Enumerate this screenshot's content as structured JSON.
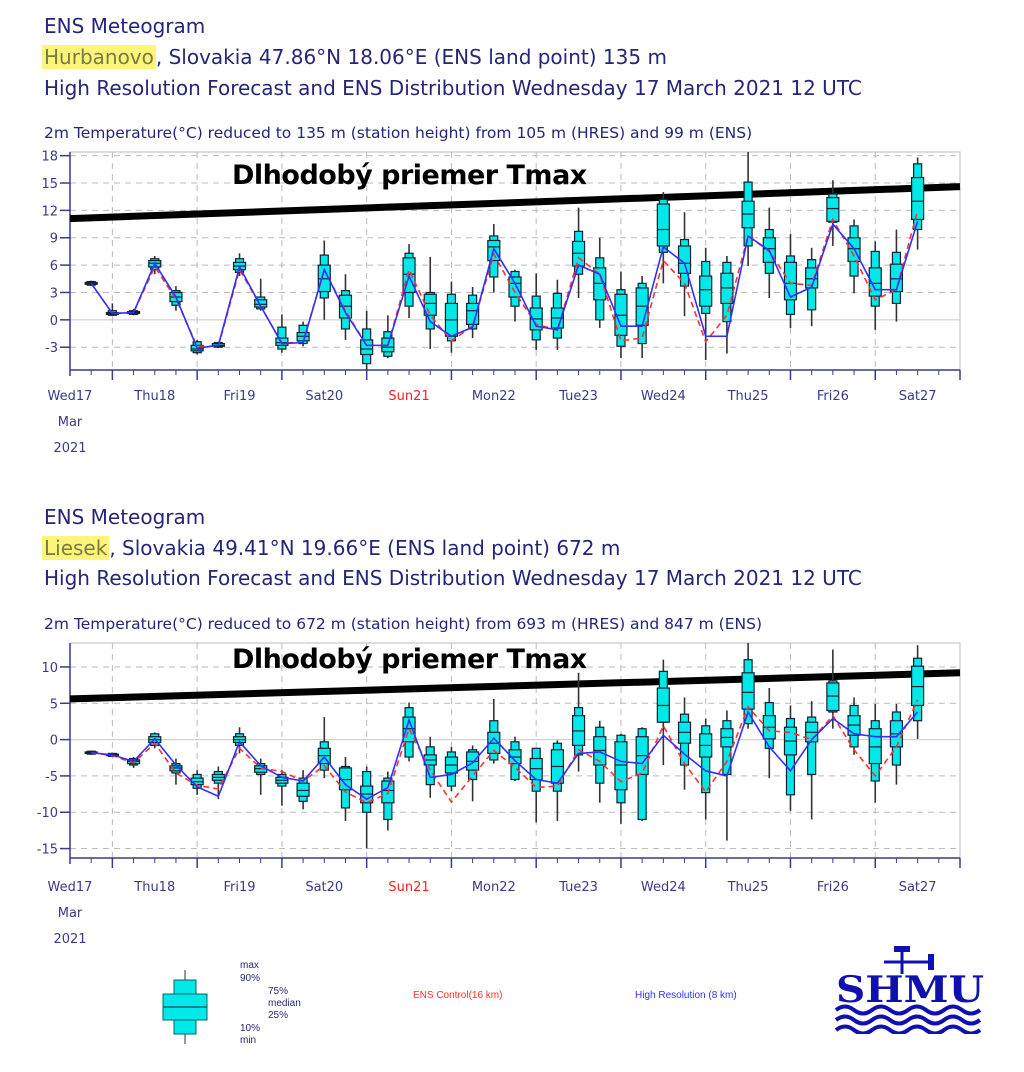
{
  "colors": {
    "box": "#00e8e8",
    "hres": "#3030ff",
    "ctrl": "#ff3030",
    "axis": "#3a3a8a",
    "tmax": "#000000",
    "highlight": "#fdf57a",
    "weekend": "#ff2020"
  },
  "panels": [
    {
      "title": "ENS Meteogram",
      "station": "Hurbanovo",
      "location": ", Slovakia 47.86°N 18.06°E (ENS land point) 135 m",
      "forecast": "High Resolution Forecast and ENS Distribution Wednesday 17 March 2021 12 UTC",
      "subtitle": "2m Temperature(°C) reduced to 135 m (station height) from 105 m (HRES) and 99 m (ENS)",
      "annotation": "Dlhodobý priemer Tmax"
    },
    {
      "title": "ENS Meteogram",
      "station": "Liesek",
      "location": ", Slovakia 49.41°N 19.66°E (ENS land point) 672 m",
      "forecast": "High Resolution Forecast and ENS Distribution Wednesday 17 March 2021 12 UTC",
      "subtitle": "2m Temperature(°C) reduced to 672 m (station height) from 693 m (HRES) and 847 m (ENS)",
      "annotation": "Dlhodobý priemer Tmax"
    }
  ],
  "legend": {
    "box_labels": [
      "max",
      "90%",
      "75%",
      "median",
      "25%",
      "10%",
      "min"
    ],
    "ens_control": "ENS Control(16 km)",
    "high_resolution": "High Resolution (8 km)",
    "logo": "SHMU"
  },
  "chart_data": [
    {
      "type": "boxplot",
      "ylabel": "2m Temperature(°C)",
      "ylim": [
        -5.5,
        18.4
      ],
      "yticks": [
        -3,
        0,
        3,
        6,
        9,
        12,
        15,
        18
      ],
      "x_unit": "hours since Wed 17 Mar 2021 12 UTC",
      "xlim": [
        0,
        252
      ],
      "x_step_hours": 6,
      "day_labels": [
        "Wed17",
        "Thu18",
        "Fri19",
        "Sat20",
        "Sun21",
        "Mon22",
        "Tue23",
        "Wed24",
        "Thu25",
        "Fri26",
        "Sat27"
      ],
      "weekend_index": 4,
      "first_label_extra": [
        "Mar",
        "2021"
      ],
      "stat_fields": [
        "min",
        "p10",
        "p25",
        "median",
        "p75",
        "p90",
        "max",
        "hres",
        "ens_control"
      ],
      "tmax_line": [
        11.1,
        14.6
      ],
      "values": [
        [
          3.7,
          3.8,
          3.9,
          4,
          4.1,
          4.2,
          4.3,
          4,
          4
        ],
        [
          0.4,
          0.5,
          0.6,
          0.7,
          0.8,
          1.0,
          1.8,
          0.7,
          0.7
        ],
        [
          0.5,
          0.6,
          0.7,
          0.8,
          0.9,
          1.0,
          1.2,
          0.8,
          0.8
        ],
        [
          5,
          5.5,
          5.8,
          6.2,
          6.5,
          6.7,
          7,
          6.2,
          5.8
        ],
        [
          1,
          1.6,
          2,
          2.5,
          3,
          3.2,
          3.7,
          2.5,
          2.3
        ],
        [
          -3.8,
          -3.6,
          -3.4,
          -3.2,
          -2.8,
          -2.4,
          -2.2,
          -3.1,
          -2.9
        ],
        [
          -3.1,
          -3,
          -2.9,
          -2.8,
          -2.6,
          -2.5,
          -2.4,
          -2.8,
          -2.9
        ],
        [
          4.8,
          5.2,
          5.5,
          5.9,
          6.3,
          6.7,
          7.3,
          5.8,
          5.5
        ],
        [
          1,
          1.2,
          1.4,
          1.7,
          2.2,
          2.5,
          4.5,
          1.5,
          1.5
        ],
        [
          -3.6,
          -3.2,
          -2.8,
          -2.5,
          -2,
          -0.8,
          0.6,
          -2.6,
          -2.6
        ],
        [
          -2.9,
          -2.6,
          -2.3,
          -1.8,
          -1.4,
          -0.6,
          -0.2,
          -2.5,
          -2.4
        ],
        [
          0,
          2.4,
          3.1,
          4.5,
          6,
          7.1,
          8.7,
          5.5,
          5.5
        ],
        [
          -2.2,
          -1,
          0.2,
          1.5,
          2.7,
          3.2,
          5,
          0.8,
          1
        ],
        [
          -5.5,
          -4.8,
          -3.8,
          -3.2,
          -2.2,
          -1,
          1,
          -2.8,
          -2.8
        ],
        [
          -4.2,
          -4,
          -3.5,
          -3,
          -2,
          -1.3,
          0.5,
          -2.8,
          -2.8
        ],
        [
          0.2,
          1.5,
          3,
          5,
          6.8,
          7.3,
          8.3,
          4.8,
          5.5
        ],
        [
          -3.2,
          -1,
          0.5,
          1.8,
          2.8,
          3,
          6.9,
          -0.2,
          0.5
        ],
        [
          -3.6,
          -2.3,
          -1.8,
          0,
          1.8,
          2.8,
          4.2,
          -1.8,
          -2.3
        ],
        [
          -2,
          -1,
          -0.5,
          1,
          1.8,
          2.7,
          3.6,
          -0.8,
          -0.7
        ],
        [
          3,
          4.7,
          6.5,
          8,
          8.7,
          9.2,
          10.5,
          7.8,
          7.2
        ],
        [
          -0.2,
          1.5,
          2.5,
          4,
          4.7,
          5.3,
          5.5,
          4,
          3
        ],
        [
          -3.3,
          -2.2,
          -1.1,
          0.1,
          1.3,
          2.6,
          5.1,
          -0.7,
          -0.5
        ],
        [
          -3.3,
          -2,
          -0.9,
          0.2,
          1.3,
          2.9,
          4.4,
          -1.1,
          -1.1
        ],
        [
          2.4,
          5,
          5.9,
          7.3,
          8.6,
          9.7,
          12.3,
          6,
          6.8
        ],
        [
          -0.9,
          0,
          2.2,
          4,
          5.7,
          6.8,
          9,
          5,
          5
        ],
        [
          -4.2,
          -2.9,
          -1.7,
          0.5,
          2.8,
          3.3,
          5.3,
          -0.7,
          -2.3
        ],
        [
          -4.2,
          -2.6,
          -0.6,
          1.5,
          3.5,
          4,
          4.8,
          -0.7,
          -2
        ],
        [
          4,
          7.4,
          8.1,
          9.9,
          12.7,
          13.2,
          14,
          8,
          6.5
        ],
        [
          0.4,
          3.7,
          5.1,
          6.2,
          8.1,
          8.8,
          11.8,
          6.2,
          4
        ],
        [
          -4.4,
          0.7,
          1.5,
          3.3,
          4.8,
          6.4,
          7.9,
          -1.8,
          -2.4
        ],
        [
          -3.7,
          -0.2,
          1.8,
          3.5,
          5.1,
          6.3,
          7,
          -1.8,
          0.5
        ],
        [
          5.9,
          8.1,
          10.1,
          11.6,
          13,
          15.1,
          18.4,
          9.2,
          9.2
        ],
        [
          2.4,
          5.1,
          6.3,
          7.8,
          9,
          9.9,
          12.3,
          7.6,
          7.5
        ],
        [
          -0.9,
          0.6,
          2.2,
          4,
          6.3,
          7,
          9.4,
          2.5,
          4
        ],
        [
          -0.7,
          1.1,
          3.5,
          4.5,
          5.7,
          6.6,
          7.9,
          3.6,
          3.8
        ],
        [
          8.1,
          10.7,
          10.8,
          12.2,
          13.4,
          13.8,
          15.3,
          10.5,
          11
        ],
        [
          2.9,
          4.8,
          6.4,
          7.8,
          9,
          10.3,
          11,
          7.8,
          7
        ],
        [
          -1.1,
          1.5,
          2.6,
          4,
          5.7,
          7.5,
          8.6,
          3.3,
          2.2
        ],
        [
          -0.2,
          1.8,
          3.1,
          4.5,
          6.1,
          7.4,
          9.9,
          3.3,
          3.3
        ],
        [
          7.7,
          9.9,
          11,
          13,
          15.6,
          17.1,
          17.8,
          10.8,
          12
        ]
      ]
    },
    {
      "type": "boxplot",
      "ylabel": "2m Temperature(°C)",
      "ylim": [
        -16.3,
        13.3
      ],
      "yticks": [
        -15,
        -10,
        -5,
        0,
        5,
        10
      ],
      "x_unit": "hours since Wed 17 Mar 2021 12 UTC",
      "xlim": [
        0,
        252
      ],
      "x_step_hours": 6,
      "day_labels": [
        "Wed17",
        "Thu18",
        "Fri19",
        "Sat20",
        "Sun21",
        "Mon22",
        "Tue23",
        "Wed24",
        "Thu25",
        "Fri26",
        "Sat27"
      ],
      "weekend_index": 4,
      "first_label_extra": [
        "Mar",
        "2021"
      ],
      "stat_fields": [
        "min",
        "p10",
        "p25",
        "median",
        "p75",
        "p90",
        "max",
        "hres",
        "ens_control"
      ],
      "tmax_line": [
        5.6,
        9.2
      ],
      "values": [
        [
          -2.1,
          -2,
          -1.9,
          -1.8,
          -1.7,
          -1.6,
          -1.5,
          -1.8,
          -1.8
        ],
        [
          -2.4,
          -2.3,
          -2.2,
          -2.1,
          -2.0,
          -1.9,
          -1.8,
          -2.1,
          -2.2
        ],
        [
          -3.9,
          -3.5,
          -3.3,
          -3.0,
          -2.8,
          -2.6,
          -2.4,
          -3,
          -3.2
        ],
        [
          -1.2,
          -0.8,
          -0.4,
          0,
          0.4,
          0.8,
          1.0,
          0.1,
          -0.5
        ],
        [
          -6.2,
          -4.6,
          -4.3,
          -3.9,
          -3.6,
          -3.3,
          -2.6,
          -3.5,
          -4.6
        ],
        [
          -7.6,
          -6.7,
          -6.2,
          -5.8,
          -5.3,
          -4.8,
          -4.2,
          -6.5,
          -6.3
        ],
        [
          -8.2,
          -6,
          -5.6,
          -5.2,
          -4.8,
          -4.4,
          -3.7,
          -7.8,
          -6.8
        ],
        [
          -1.9,
          -0.8,
          -0.4,
          0,
          0.4,
          0.8,
          1.7,
          -0.3,
          -1.2
        ],
        [
          -7.6,
          -4.8,
          -4.5,
          -4,
          -3.6,
          -3.3,
          -2.6,
          -3.6,
          -3.9
        ],
        [
          -9.1,
          -6.4,
          -6,
          -5.6,
          -5.2,
          -4.8,
          -4.2,
          -5.2,
          -4.4
        ],
        [
          -9.6,
          -8.5,
          -7.8,
          -7,
          -6,
          -5.3,
          -4.2,
          -5.7,
          -5.7
        ],
        [
          -5.3,
          -4.2,
          -3.3,
          -2.2,
          -1.2,
          -0.3,
          3.1,
          -2.4,
          -3.6
        ],
        [
          -11.2,
          -9.4,
          -6.9,
          -5.5,
          -3.9,
          -3.7,
          -2.4,
          -6.2,
          -7.2
        ],
        [
          -15,
          -10,
          -8.7,
          -7.5,
          -6.4,
          -4.4,
          -3.7,
          -8.2,
          -8.7
        ],
        [
          -12.5,
          -11,
          -8.7,
          -7,
          -5.7,
          -5.3,
          -4.4,
          -6.6,
          -7.4
        ],
        [
          -3,
          -2.4,
          -0.3,
          1.5,
          3.1,
          4.4,
          5.1,
          2.7,
          1.5
        ],
        [
          -8,
          -6.2,
          -3.5,
          -2.8,
          -2.1,
          -1,
          0.4,
          -5.2,
          -4.2
        ],
        [
          -7.1,
          -6.4,
          -4.6,
          -3.5,
          -2.4,
          -1.7,
          -1,
          -4.8,
          -8.6
        ],
        [
          -8.5,
          -5.5,
          -4.2,
          -3,
          -1.7,
          -1.4,
          -0.8,
          -3.2,
          -5
        ],
        [
          -3.3,
          -2.8,
          -1.9,
          -0.5,
          1,
          2.6,
          5.6,
          0.2,
          -1.5
        ],
        [
          -5.7,
          -5.5,
          -3.3,
          -2.4,
          -1.4,
          -0.3,
          0.4,
          -2.9,
          -3.8
        ],
        [
          -11.4,
          -7.1,
          -5.5,
          -4,
          -2.6,
          -1.2,
          -1.2,
          -5.5,
          -6.6
        ],
        [
          -11.2,
          -7.1,
          -6,
          -3.7,
          -1.4,
          -0.5,
          -0.1,
          -6,
          -6.4
        ],
        [
          -4.4,
          -2.1,
          -0.8,
          1.2,
          3.3,
          4.4,
          9.2,
          -1.9,
          -1.4
        ],
        [
          -8.7,
          -6,
          -3.5,
          -1.5,
          0.4,
          1.7,
          2.6,
          -1.7,
          -3
        ],
        [
          -11.6,
          -8.7,
          -6.9,
          -3.5,
          -0.3,
          0.6,
          0.8,
          -3,
          -5.8
        ],
        [
          -11.2,
          -11,
          -4.8,
          -2.2,
          0.4,
          1.5,
          1.7,
          -3.3,
          -4.6
        ],
        [
          -3.5,
          2.4,
          2.4,
          4.7,
          7.1,
          9.4,
          11,
          0.6,
          1.9
        ],
        [
          -6.9,
          -3.5,
          -0.5,
          1,
          2.4,
          3.5,
          5.8,
          -2,
          -3.3
        ],
        [
          -11,
          -7.3,
          -2.4,
          -0.8,
          0.8,
          1.9,
          2.9,
          -4.3,
          -7.2
        ],
        [
          -13.9,
          -4.8,
          -1,
          0.3,
          1.5,
          2.6,
          4,
          -5,
          -3
        ],
        [
          1.5,
          2.2,
          4.2,
          6.5,
          9.2,
          11,
          13.3,
          3.8,
          4.5
        ],
        [
          -5.3,
          -1.2,
          0.1,
          1.7,
          3.3,
          5.1,
          7.1,
          -1,
          1.2
        ],
        [
          -9.8,
          -7.6,
          -2.1,
          -0.2,
          1.7,
          2.9,
          4.7,
          -4.3,
          1
        ],
        [
          -11,
          -4.8,
          -0.3,
          1,
          2.4,
          3.1,
          5.3,
          0,
          0
        ],
        [
          1.5,
          3.8,
          4,
          6,
          7.8,
          8.1,
          12.4,
          2.9,
          3.3
        ],
        [
          -2.1,
          -1,
          0.6,
          2,
          3.3,
          4.7,
          5.8,
          0.8,
          -1.4
        ],
        [
          -8.7,
          -5.7,
          -3.3,
          -1,
          1.5,
          2.6,
          4.9,
          0.4,
          -5
        ],
        [
          -6.2,
          -3.5,
          -1,
          0.8,
          2.6,
          3.8,
          4.9,
          0.4,
          -1
        ],
        [
          0.1,
          2.6,
          4.7,
          7.3,
          10.1,
          11.2,
          13,
          3.8,
          5.5
        ]
      ]
    }
  ]
}
